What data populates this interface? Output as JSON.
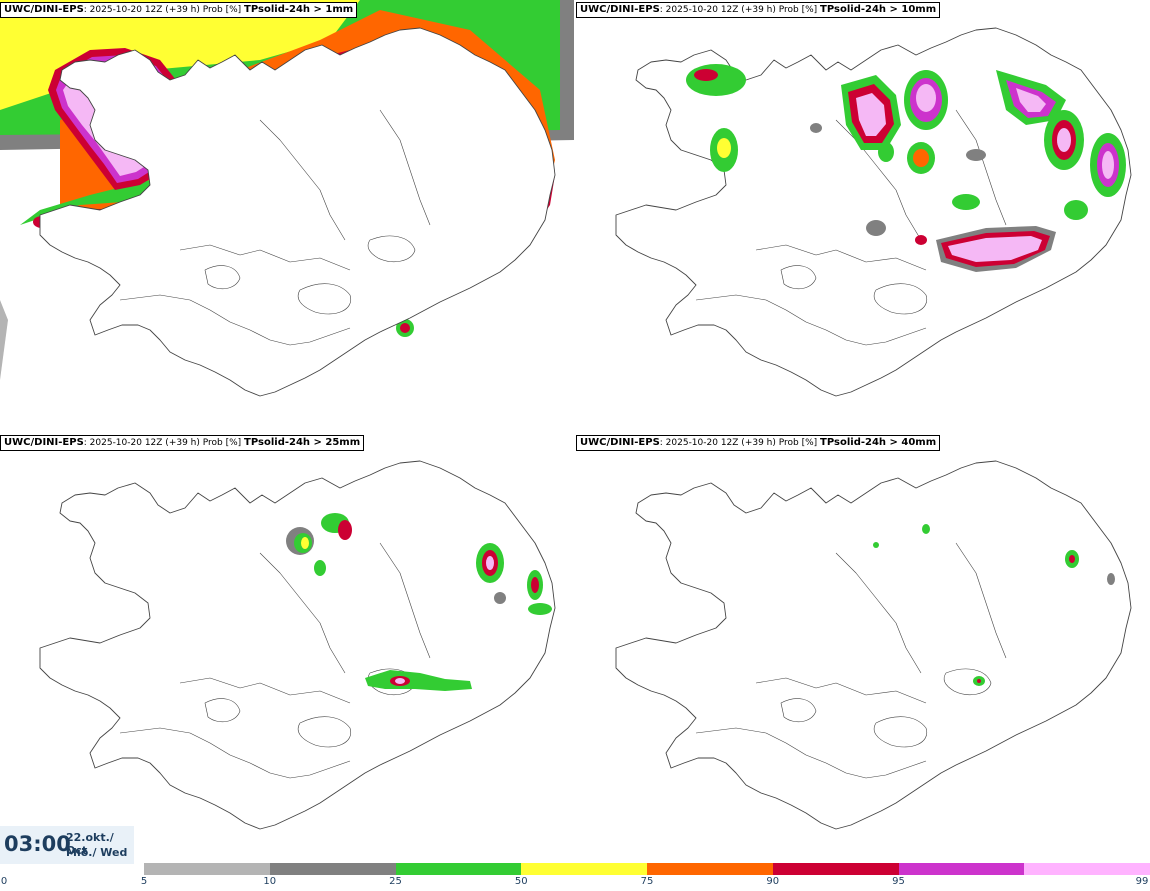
{
  "panels": [
    {
      "model": "UWC/DINI-EPS",
      "info": ": 2025-10-20 12Z (+39 h) Prob [%]",
      "param": "TPsolid-24h > 1mm"
    },
    {
      "model": "UWC/DINI-EPS",
      "info": ": 2025-10-20 12Z (+39 h) Prob [%]",
      "param": "TPsolid-24h > 10mm"
    },
    {
      "model": "UWC/DINI-EPS",
      "info": ": 2025-10-20 12Z (+39 h) Prob [%]",
      "param": "TPsolid-24h > 25mm"
    },
    {
      "model": "UWC/DINI-EPS",
      "info": ": 2025-10-20 12Z (+39 h) Prob [%]",
      "param": "TPsolid-24h > 40mm"
    }
  ],
  "valid_time": {
    "clock": "03:00",
    "date_line1": "22.okt./ Oct",
    "date_line2": "Mið./ Wed"
  },
  "colorbar": {
    "ticks": [
      "0",
      "5",
      "10",
      "25",
      "50",
      "75",
      "90",
      "95",
      "99"
    ],
    "colors": [
      "#b4b4b4",
      "#808080",
      "#33cc33",
      "#ffff33",
      "#ff6600",
      "#cc0033",
      "#cc33cc",
      "#ffb3ff"
    ]
  },
  "palette": {
    "p5": "#b4b4b4",
    "p10": "#808080",
    "p25": "#33cc33",
    "p50": "#ffff33",
    "p75": "#ff6600",
    "p90": "#cc0033",
    "p95": "#cc33cc",
    "p99": "#f5b8f5",
    "outline": "#444444"
  }
}
